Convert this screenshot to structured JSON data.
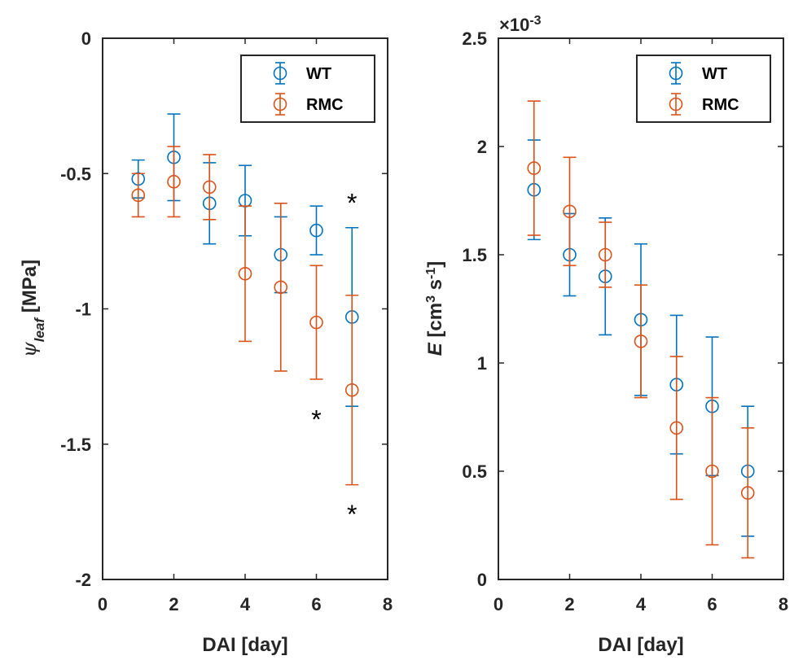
{
  "chart_data": [
    {
      "type": "scatter",
      "panel": "left",
      "xlabel": "DAI [day]",
      "ylabel": "ψ_leaf [MPa]",
      "ylabel_parts": {
        "symbol": "ψ",
        "sub": "leaf",
        "unit": " [MPa]"
      },
      "xlim": [
        0,
        8
      ],
      "ylim": [
        -2,
        0
      ],
      "xticks": [
        0,
        2,
        4,
        6,
        8
      ],
      "xtick_labels": [
        "0",
        "2",
        "4",
        "6",
        "8"
      ],
      "yticks": [
        -2,
        -1.5,
        -1,
        -0.5,
        0
      ],
      "ytick_labels": [
        "-2",
        "-1.5",
        "-1",
        "-0.5",
        "0"
      ],
      "grid": false,
      "legend_position": "top-right",
      "series": [
        {
          "name": "WT",
          "color": "#0072BD",
          "marker": "circle-open",
          "x": [
            1,
            2,
            3,
            4,
            5,
            6,
            7
          ],
          "y": [
            -0.52,
            -0.44,
            -0.61,
            -0.6,
            -0.8,
            -0.71,
            -1.03
          ],
          "err": [
            0.07,
            0.16,
            0.15,
            0.13,
            0.14,
            0.09,
            0.33
          ]
        },
        {
          "name": "RMC",
          "color": "#D95319",
          "marker": "circle-open",
          "x": [
            1,
            2,
            3,
            4,
            5,
            6,
            7
          ],
          "y": [
            -0.58,
            -0.53,
            -0.55,
            -0.87,
            -0.92,
            -1.05,
            -1.3
          ],
          "err": [
            0.08,
            0.13,
            0.12,
            0.25,
            0.31,
            0.21,
            0.35
          ]
        }
      ],
      "annotations": [
        {
          "text": "*",
          "x": 7,
          "y": -0.6
        },
        {
          "text": "*",
          "x": 6,
          "y": -1.4
        },
        {
          "text": "*",
          "x": 7,
          "y": -1.75
        }
      ]
    },
    {
      "type": "scatter",
      "panel": "right",
      "xlabel": "DAI [day]",
      "ylabel": "E [cm3 s-1]",
      "ylabel_parts": {
        "symbol": "E",
        "unit_a": " [cm",
        "sup_a": "3",
        "unit_b": " s",
        "sup_b": "-1",
        "unit_c": "]"
      },
      "axis_multiplier": "×10",
      "axis_multiplier_exp": "-3",
      "xlim": [
        0,
        8
      ],
      "ylim": [
        0,
        2.5
      ],
      "xticks": [
        0,
        2,
        4,
        6,
        8
      ],
      "xtick_labels": [
        "0",
        "2",
        "4",
        "6",
        "8"
      ],
      "yticks": [
        0,
        0.5,
        1,
        1.5,
        2,
        2.5
      ],
      "ytick_labels": [
        "0",
        "0.5",
        "1",
        "1.5",
        "2",
        "2.5"
      ],
      "grid": false,
      "legend_position": "top-right",
      "series": [
        {
          "name": "WT",
          "color": "#0072BD",
          "marker": "circle-open",
          "x": [
            1,
            2,
            3,
            4,
            5,
            6,
            7
          ],
          "y": [
            1.8,
            1.5,
            1.4,
            1.2,
            0.9,
            0.8,
            0.5
          ],
          "err": [
            0.23,
            0.19,
            0.27,
            0.35,
            0.32,
            0.32,
            0.3
          ]
        },
        {
          "name": "RMC",
          "color": "#D95319",
          "marker": "circle-open",
          "x": [
            1,
            2,
            3,
            4,
            5,
            6,
            7
          ],
          "y": [
            1.9,
            1.7,
            1.5,
            1.1,
            0.7,
            0.5,
            0.4
          ],
          "err": [
            0.31,
            0.25,
            0.15,
            0.26,
            0.33,
            0.34,
            0.3
          ]
        }
      ],
      "annotations": []
    }
  ]
}
